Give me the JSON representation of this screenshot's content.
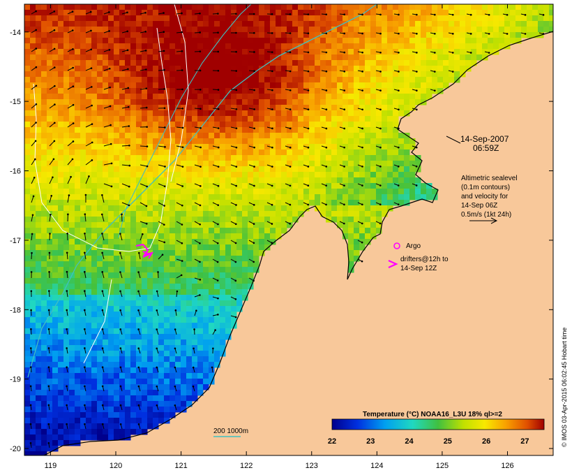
{
  "map": {
    "date_line": "14-Sep-2007",
    "time_line": "06:59Z",
    "legend_lines": [
      "Altimetric sealevel",
      "(0.1m contours)",
      "and velocity for",
      "14-Sep 06Z",
      "0.5m/s (1kt 24h)"
    ],
    "argo_label": "Argo",
    "drifter_lines": [
      "drifters@12h to",
      "14-Sep 12Z"
    ],
    "depth_label": "200  1000m",
    "colorbar_title": "Temperature (°C) NOAA16_L3U 18% ql>=2",
    "colorbar_ticks": [
      "22",
      "23",
      "24",
      "25",
      "26",
      "27"
    ],
    "credit": "© IMOS 03-Apr-2015 06:02:45 Hobart time",
    "x_ticks": [
      "119",
      "120",
      "121",
      "122",
      "123",
      "124",
      "125",
      "126"
    ],
    "y_ticks": [
      "-14",
      "-15",
      "-16",
      "-17",
      "-18",
      "-19",
      "-20"
    ],
    "colors": {
      "land": "#f8c89a",
      "warmest": "#a00000",
      "coolest": "#00008c",
      "argo": "#ff00ff",
      "isobath": "#40c0c0"
    }
  },
  "chart_data": {
    "type": "heatmap",
    "xlim": [
      118.6,
      126.7
    ],
    "ylim": [
      -20.1,
      -13.6
    ],
    "color_range": [
      22,
      27.5
    ],
    "argo": {
      "lon": 124.3,
      "lat": -17.04
    }
  }
}
